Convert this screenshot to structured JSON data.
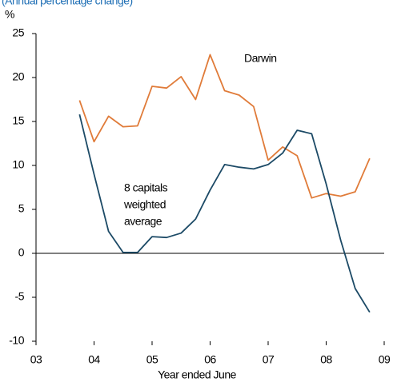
{
  "chart_data": {
    "type": "line",
    "subtitle": "(Annual percentage change)",
    "y_label": "%",
    "x_label": "Year ended June",
    "x": [
      2003.75,
      2004.0,
      2004.25,
      2004.5,
      2004.75,
      2005.0,
      2005.25,
      2005.5,
      2005.75,
      2006.0,
      2006.25,
      2006.5,
      2006.75,
      2007.0,
      2007.25,
      2007.5,
      2007.75,
      2008.0,
      2008.25,
      2008.5,
      2008.75
    ],
    "series": [
      {
        "name": "Darwin",
        "color": "#e07b39",
        "values": [
          17.4,
          12.7,
          15.6,
          14.4,
          14.5,
          19.0,
          18.8,
          20.1,
          17.5,
          22.6,
          18.5,
          18.0,
          16.7,
          10.6,
          12.1,
          11.1,
          6.3,
          6.8,
          6.5,
          7.0,
          10.8
        ]
      },
      {
        "name": "8 capitals weighted average",
        "color": "#1c4a66",
        "values": [
          15.8,
          9.0,
          2.5,
          0.1,
          0.1,
          1.9,
          1.8,
          2.3,
          3.9,
          7.2,
          10.1,
          9.8,
          9.6,
          10.1,
          11.4,
          14.0,
          13.6,
          7.9,
          1.5,
          -4.0,
          -6.7
        ]
      }
    ],
    "series_label_lines": [
      [
        "Darwin"
      ],
      [
        "8 capitals",
        "weighted",
        "average"
      ]
    ],
    "xlim": [
      2003,
      2009
    ],
    "xticks": [
      {
        "value": 2003,
        "label": "03"
      },
      {
        "value": 2004,
        "label": "04"
      },
      {
        "value": 2005,
        "label": "05"
      },
      {
        "value": 2006,
        "label": "06"
      },
      {
        "value": 2007,
        "label": "07"
      },
      {
        "value": 2008,
        "label": "08"
      },
      {
        "value": 2009,
        "label": "09"
      }
    ],
    "ylim": [
      -10,
      25
    ],
    "yticks": [
      -10,
      -5,
      0,
      5,
      10,
      15,
      20,
      25
    ],
    "grid": false
  }
}
